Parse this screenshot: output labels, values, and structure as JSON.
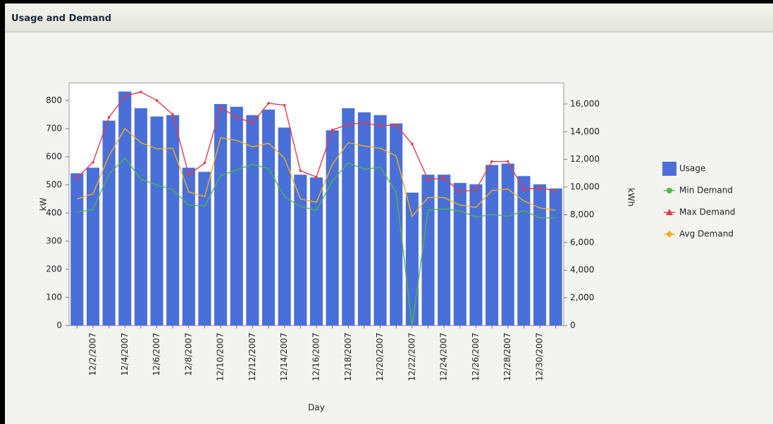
{
  "title": "Usage and Demand",
  "chart_data": {
    "type": "bar",
    "x_label": "Day",
    "y_label": "kW",
    "y2_label": "kWh",
    "categories": [
      null,
      "12/2/2007",
      null,
      "12/4/2007",
      null,
      "12/6/2007",
      null,
      "12/8/2007",
      null,
      "12/10/2007",
      null,
      "12/12/2007",
      null,
      "12/14/2007",
      null,
      "12/16/2007",
      null,
      "12/18/2007",
      null,
      "12/20/2007",
      null,
      "12/22/2007",
      null,
      "12/24/2007",
      null,
      "12/26/2007",
      null,
      "12/28/2007",
      null,
      "12/30/2007",
      null
    ],
    "series": [
      {
        "name": "Usage",
        "type": "bar",
        "axis": "y2",
        "color": "#4a6fd8",
        "values": [
          11000,
          11400,
          14800,
          16900,
          15700,
          15100,
          15200,
          11400,
          11100,
          16000,
          15800,
          15200,
          15600,
          14300,
          10900,
          10700,
          14100,
          15700,
          15400,
          15200,
          14600,
          9600,
          10900,
          10900,
          10300,
          10200,
          11600,
          11700,
          10800,
          10200,
          9900
        ]
      },
      {
        "name": "Min Demand",
        "type": "line",
        "color": "#4cb84a",
        "values": [
          403,
          413,
          538,
          595,
          520,
          500,
          483,
          428,
          425,
          533,
          553,
          573,
          558,
          458,
          423,
          410,
          513,
          578,
          555,
          563,
          475,
          0,
          410,
          415,
          408,
          385,
          395,
          388,
          408,
          383,
          383
        ]
      },
      {
        "name": "Max Demand",
        "type": "line",
        "color": "#e8384a",
        "values": [
          525,
          580,
          740,
          815,
          830,
          800,
          750,
          535,
          578,
          775,
          740,
          720,
          790,
          783,
          550,
          528,
          695,
          715,
          720,
          710,
          713,
          645,
          518,
          525,
          475,
          483,
          583,
          583,
          483,
          490,
          478
        ]
      },
      {
        "name": "Avg Demand",
        "type": "line",
        "color": "#f2b01e",
        "values": [
          450,
          468,
          603,
          700,
          650,
          628,
          630,
          475,
          458,
          668,
          658,
          635,
          648,
          595,
          450,
          438,
          573,
          650,
          638,
          630,
          603,
          388,
          455,
          455,
          428,
          420,
          480,
          485,
          443,
          418,
          410
        ]
      }
    ],
    "ylim": [
      0,
      862
    ],
    "yticks": [
      0,
      100,
      200,
      300,
      400,
      500,
      600,
      700,
      800
    ],
    "y2lim": [
      0,
      17520
    ],
    "y2ticks": [
      0,
      {
        "value": 2000,
        "label": "2,000"
      },
      {
        "value": 4000,
        "label": "4,000"
      },
      {
        "value": 6000,
        "label": "6,000"
      },
      {
        "value": 8000,
        "label": "8,000"
      },
      {
        "value": 10000,
        "label": "10,000"
      },
      {
        "value": 12000,
        "label": "12,000"
      },
      {
        "value": 14000,
        "label": "14,000"
      },
      {
        "value": 16000,
        "label": "16,000"
      }
    ],
    "legend": "right"
  }
}
